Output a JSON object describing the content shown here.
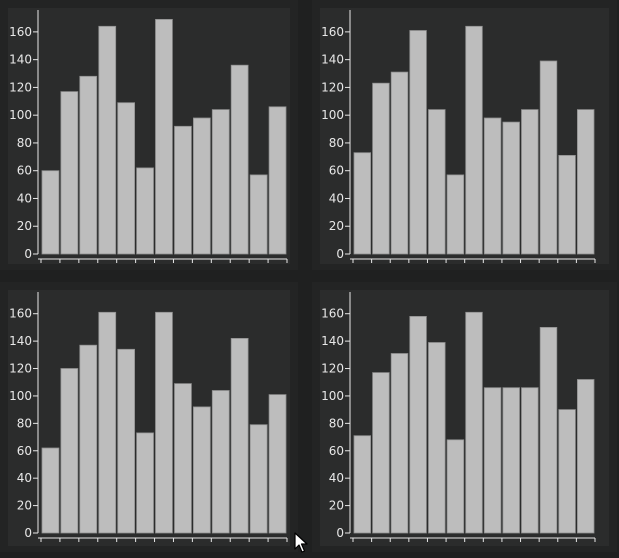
{
  "chart_data": [
    {
      "type": "bar",
      "title": "",
      "xlabel": "",
      "ylabel": "",
      "ylim": [
        0,
        170
      ],
      "yticks": [
        0,
        20,
        40,
        60,
        80,
        100,
        120,
        140,
        160
      ],
      "grid": false,
      "values": [
        60,
        117,
        128,
        164,
        109,
        62,
        169,
        92,
        98,
        104,
        136,
        57,
        106
      ]
    },
    {
      "type": "bar",
      "title": "",
      "xlabel": "",
      "ylabel": "",
      "ylim": [
        0,
        170
      ],
      "yticks": [
        0,
        20,
        40,
        60,
        80,
        100,
        120,
        140,
        160
      ],
      "grid": false,
      "values": [
        73,
        123,
        131,
        161,
        104,
        57,
        164,
        98,
        95,
        104,
        139,
        71,
        104
      ]
    },
    {
      "type": "bar",
      "title": "",
      "xlabel": "",
      "ylabel": "",
      "ylim": [
        0,
        170
      ],
      "yticks": [
        0,
        20,
        40,
        60,
        80,
        100,
        120,
        140,
        160
      ],
      "grid": false,
      "values": [
        62,
        120,
        137,
        161,
        134,
        73,
        161,
        109,
        92,
        104,
        142,
        79,
        101
      ]
    },
    {
      "type": "bar",
      "title": "",
      "xlabel": "",
      "ylabel": "",
      "ylim": [
        0,
        170
      ],
      "yticks": [
        0,
        20,
        40,
        60,
        80,
        100,
        120,
        140,
        160
      ],
      "grid": false,
      "values": [
        71,
        117,
        131,
        158,
        139,
        68,
        161,
        106,
        106,
        106,
        150,
        90,
        112
      ]
    }
  ],
  "colors": {
    "bar_fill": "#bdbdbd",
    "bar_stroke": "#8f8f8f",
    "plot_background": "#2b2c2c",
    "panel_background": "#232424",
    "axis": "#e8e8e8",
    "page_background": "#1f2020"
  },
  "cursor": {
    "icon": "mouse-pointer-icon"
  }
}
